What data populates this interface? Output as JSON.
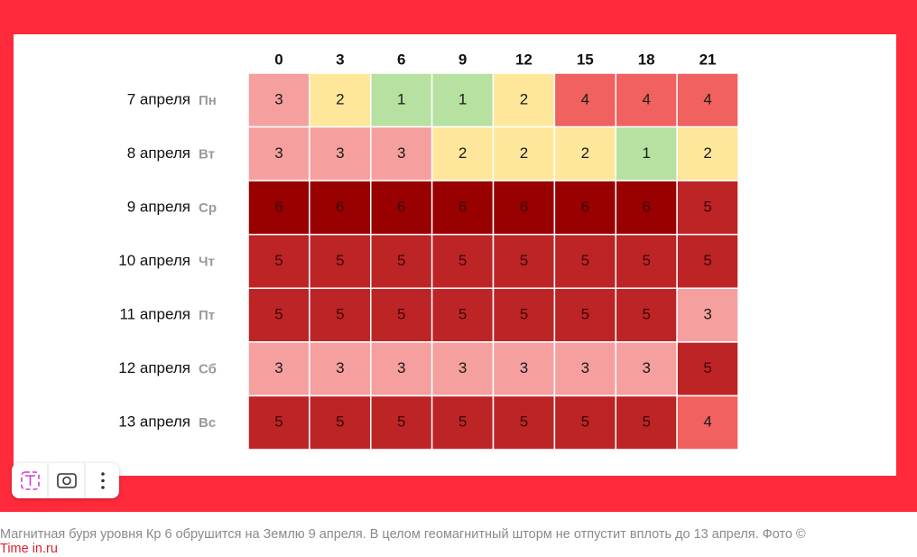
{
  "chart_data": {
    "type": "heatmap",
    "columns": [
      0,
      3,
      6,
      9,
      12,
      15,
      18,
      21
    ],
    "rows": [
      {
        "date": "7 апреля",
        "day": "Пн"
      },
      {
        "date": "8 апреля",
        "day": "Вт"
      },
      {
        "date": "9 апреля",
        "day": "Ср"
      },
      {
        "date": "10 апреля",
        "day": "Чт"
      },
      {
        "date": "11 апреля",
        "day": "Пт"
      },
      {
        "date": "12 апреля",
        "day": "Сб"
      },
      {
        "date": "13 апреля",
        "day": "Вс"
      }
    ],
    "values": [
      [
        3,
        2,
        1,
        1,
        2,
        4,
        4,
        4
      ],
      [
        3,
        3,
        3,
        2,
        2,
        2,
        1,
        2
      ],
      [
        6,
        6,
        6,
        6,
        6,
        6,
        6,
        5
      ],
      [
        5,
        5,
        5,
        5,
        5,
        5,
        5,
        5
      ],
      [
        5,
        5,
        5,
        5,
        5,
        5,
        5,
        3
      ],
      [
        3,
        3,
        3,
        3,
        3,
        3,
        3,
        5
      ],
      [
        5,
        5,
        5,
        5,
        5,
        5,
        5,
        4
      ]
    ],
    "colors": {
      "1": "#b7e1a1",
      "2": "#fee79a",
      "3": "#f5a09f",
      "4": "#f0615f",
      "5": "#bd2426",
      "6": "#990000"
    }
  },
  "caption": {
    "text": "Магнитная буря уровня Кр 6 обрушится на Землю 9 апреля. В целом геомагнитный шторм не отпустит вплоть до 13 апреля. Фото ©",
    "source": "Time in.ru"
  }
}
